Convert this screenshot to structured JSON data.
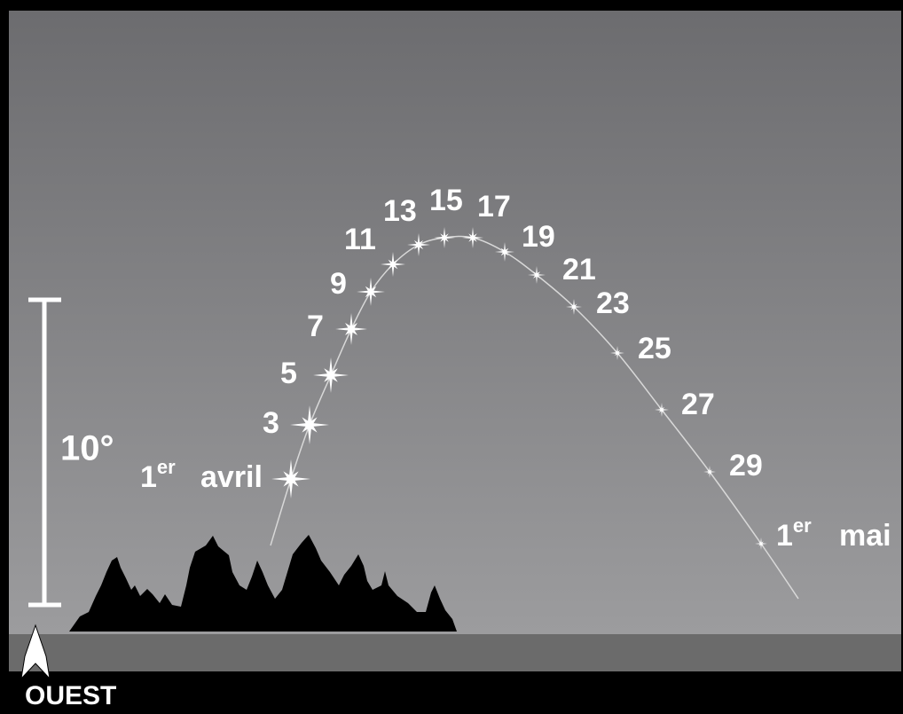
{
  "scale": {
    "label": "10°"
  },
  "direction": "OUEST",
  "dates": [
    {
      "day": "1",
      "sup": "er",
      "month": "avril"
    },
    {
      "day": "3"
    },
    {
      "day": "5"
    },
    {
      "day": "7"
    },
    {
      "day": "9"
    },
    {
      "day": "11"
    },
    {
      "day": "13"
    },
    {
      "day": "15"
    },
    {
      "day": "17"
    },
    {
      "day": "19"
    },
    {
      "day": "21"
    },
    {
      "day": "23"
    },
    {
      "day": "25"
    },
    {
      "day": "27"
    },
    {
      "day": "29"
    },
    {
      "day": "1",
      "sup": "er",
      "month": "mai"
    }
  ]
}
